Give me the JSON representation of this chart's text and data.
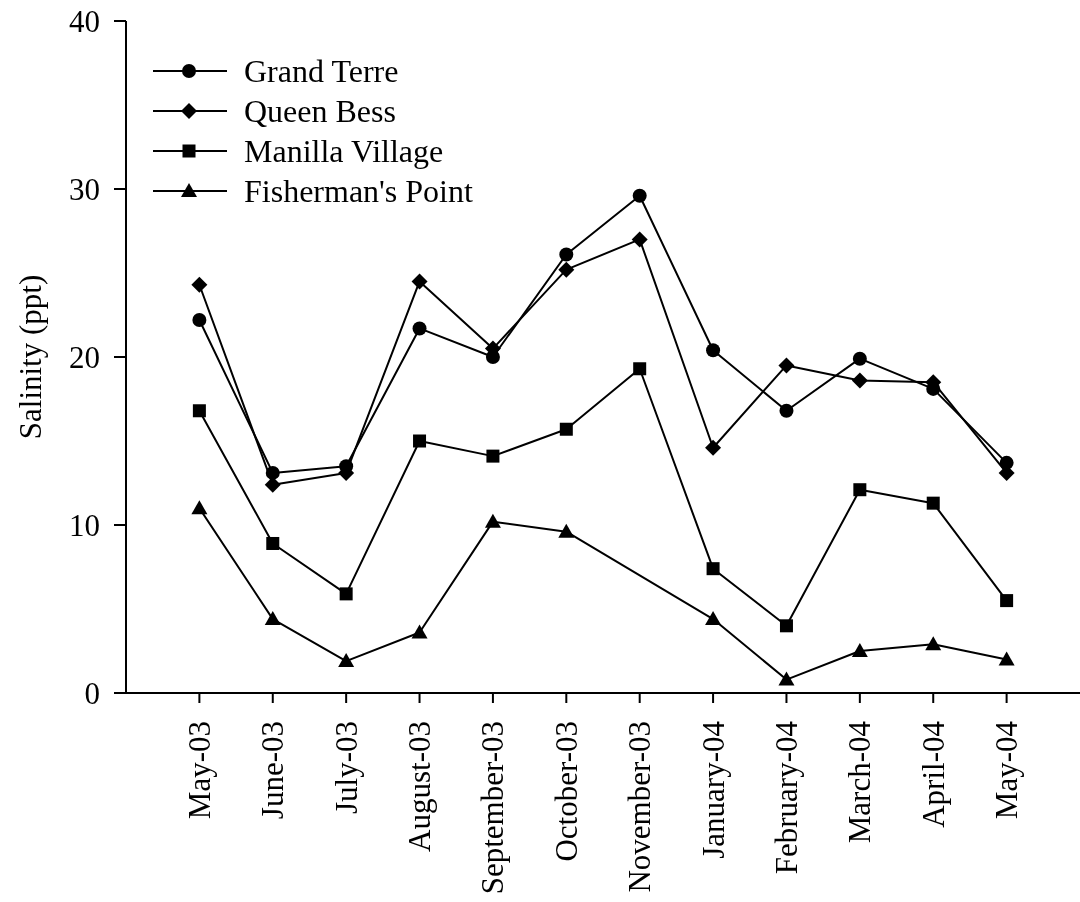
{
  "chart_data": {
    "type": "line",
    "ylabel": "Salinity (ppt)",
    "categories": [
      "May-03",
      "June-03",
      "July-03",
      "August-03",
      "September-03",
      "October-03",
      "November-03",
      "January-04",
      "February-04",
      "March-04",
      "April-04",
      "May-04"
    ],
    "ylim": [
      0,
      40
    ],
    "yticks": [
      0,
      10,
      20,
      30,
      40
    ],
    "legend": "top left",
    "series": [
      {
        "name": "Grand Terre",
        "color": "#000000",
        "marker": "circle",
        "values": [
          22.2,
          13.1,
          13.5,
          21.7,
          20.0,
          26.1,
          29.6,
          20.4,
          16.8,
          19.9,
          18.1,
          13.7
        ]
      },
      {
        "name": "Queen Bess",
        "color": "#000000",
        "marker": "diamond",
        "values": [
          24.3,
          12.4,
          13.1,
          24.5,
          20.5,
          25.2,
          27.0,
          14.6,
          19.5,
          18.6,
          18.5,
          13.1
        ]
      },
      {
        "name": "Manilla Village",
        "color": "#000000",
        "marker": "square",
        "values": [
          16.8,
          8.9,
          5.9,
          15.0,
          14.1,
          15.7,
          19.3,
          7.4,
          4.0,
          12.1,
          11.3,
          5.5
        ]
      },
      {
        "name": "Fisherman's Point",
        "color": "#000000",
        "marker": "triangle",
        "values": [
          11.0,
          4.4,
          1.9,
          3.6,
          10.2,
          9.6,
          null,
          4.4,
          0.8,
          2.5,
          2.9,
          2.0
        ]
      }
    ]
  }
}
